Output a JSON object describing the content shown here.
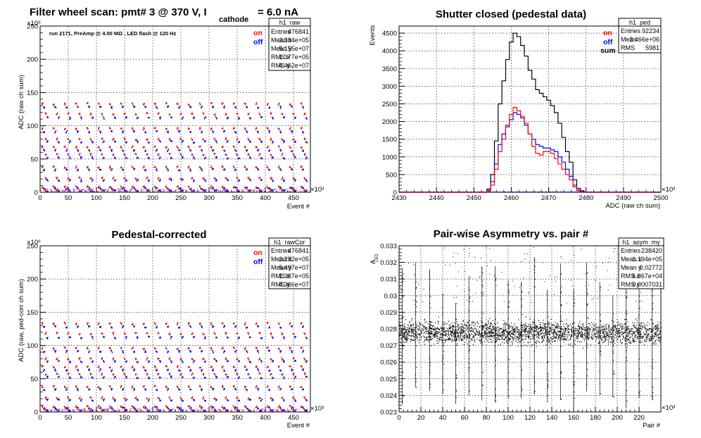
{
  "panels": [
    {
      "id": "raw",
      "title": "Filter wheel scan: pmt#   3 @   370 V, I",
      "title_sub": "cathode",
      "title_tail": "= 6.0 nA",
      "annotation": "run 2171, PreAmp @ 4.00 MΩ , LED flash @  120 Hz",
      "xlabel": "Event #",
      "ylabel": "ADC (raw ch sum)",
      "xexp": "×10³",
      "yexp": "×10⁶",
      "legend": [
        {
          "label": "on",
          "color": "#ff0000"
        },
        {
          "label": "off",
          "color": "#0000ff"
        }
      ],
      "stats": {
        "name": "h1_raw",
        "rows": [
          [
            "Entries",
            "476841"
          ],
          [
            "Mean x",
            "2.384e+05"
          ],
          [
            "Mean y",
            "5.155e+07"
          ],
          [
            "RMS x",
            "1.377e+05"
          ],
          [
            "RMS y",
            "4.462e+07"
          ]
        ]
      }
    },
    {
      "id": "ped",
      "title": "Shutter closed (pedestal data)",
      "xlabel": "ADC (raw ch sum)",
      "ylabel": "Events",
      "xexp": "×10³",
      "legend": [
        {
          "label": "on",
          "color": "#ff0000"
        },
        {
          "label": "off",
          "color": "#0000ff"
        },
        {
          "label": "sum",
          "color": "#000000"
        }
      ],
      "stats": {
        "name": "h1_ped",
        "rows": [
          [
            "Entries",
            "92234"
          ],
          [
            "Mean",
            "2.466e+06"
          ],
          [
            "RMS",
            "5981"
          ]
        ]
      }
    },
    {
      "id": "rawCor",
      "title": "Pedestal-corrected",
      "xlabel": "Event #",
      "ylabel": "ADC (raw, ped-corr ch sum)",
      "xexp": "×10³",
      "yexp": "×10⁶",
      "legend": [
        {
          "label": "on",
          "color": "#ff0000"
        },
        {
          "label": "off",
          "color": "#0000ff"
        }
      ],
      "stats": {
        "name": "h1_rawCor",
        "rows": [
          [
            "Entries",
            "476841"
          ],
          [
            "Mean x",
            "2.282e+05"
          ],
          [
            "Mean y",
            "5.497e+07"
          ],
          [
            "RMS x",
            "1.387e+05"
          ],
          [
            "RMS y",
            "4.366e+07"
          ]
        ]
      }
    },
    {
      "id": "asym",
      "title": "Pair-wise Asymmetry vs. pair #",
      "xlabel": "Pair #",
      "ylabel": "A",
      "ylabel_sub": "LED",
      "xexp": "×10³",
      "stats": {
        "name": "h1_asym_my",
        "rows": [
          [
            "Entries",
            "238420"
          ],
          [
            "Mean x",
            "1.194e+05"
          ],
          [
            "Mean y",
            "0.02772"
          ],
          [
            "RMS x",
            "6.867e+04"
          ],
          [
            "RMS y",
            "0.0007031"
          ]
        ]
      }
    }
  ],
  "chart_data": [
    {
      "type": "scatter",
      "title": "Filter wheel scan: pmt#   3 @   370 V, I cathode = 6.0 nA",
      "xlabel": "Event # (×10³)",
      "ylabel": "ADC (raw ch sum) (×10⁶)",
      "xlim": [
        0,
        480
      ],
      "ylim": [
        0,
        250
      ],
      "xticks": [
        0,
        50,
        100,
        150,
        200,
        250,
        300,
        350,
        400,
        450
      ],
      "yticks": [
        0,
        50,
        100,
        150,
        200,
        250
      ],
      "grid": true,
      "series": [
        {
          "name": "on",
          "color": "#ff0000",
          "levels": [
            133,
            118,
            96,
            80,
            68,
            57,
            38,
            21,
            8,
            3
          ]
        },
        {
          "name": "off",
          "color": "#0000ff",
          "levels": [
            128,
            112,
            91,
            76,
            63,
            52,
            34,
            18,
            6,
            2
          ]
        }
      ],
      "level_period_x": 20
    },
    {
      "type": "line",
      "title": "Shutter closed (pedestal data)",
      "xlabel": "ADC (raw ch sum) (×10³)",
      "ylabel": "Events",
      "xlim": [
        2430,
        2500
      ],
      "ylim": [
        0,
        4700
      ],
      "xticks": [
        2430,
        2440,
        2450,
        2460,
        2470,
        2480,
        2490,
        2500
      ],
      "yticks": [
        0,
        500,
        1000,
        1500,
        2000,
        2500,
        3000,
        3500,
        4000,
        4500
      ],
      "grid": true,
      "x": [
        2453,
        2454,
        2455,
        2456,
        2457,
        2458,
        2459,
        2460,
        2461,
        2462,
        2463,
        2464,
        2465,
        2466,
        2467,
        2468,
        2469,
        2470,
        2471,
        2472,
        2473,
        2474,
        2475,
        2476,
        2477,
        2478,
        2479,
        2480,
        2481
      ],
      "series": [
        {
          "name": "on",
          "color": "#ff0000",
          "values": [
            0,
            40,
            200,
            650,
            1150,
            1500,
            1900,
            2200,
            2400,
            2300,
            2150,
            1950,
            1650,
            1300,
            1100,
            1050,
            1150,
            1150,
            1100,
            950,
            800,
            650,
            500,
            350,
            150,
            50,
            20,
            0,
            0
          ]
        },
        {
          "name": "off",
          "color": "#0000ff",
          "values": [
            0,
            50,
            300,
            800,
            1350,
            1650,
            1850,
            2050,
            2250,
            2200,
            2100,
            1900,
            1650,
            1500,
            1350,
            1300,
            1250,
            1250,
            1200,
            1150,
            1000,
            850,
            650,
            450,
            200,
            60,
            20,
            0,
            0
          ]
        },
        {
          "name": "sum",
          "color": "#000000",
          "values": [
            0,
            90,
            500,
            1450,
            2500,
            3150,
            3750,
            4250,
            4500,
            4400,
            4150,
            3850,
            3450,
            3200,
            2900,
            2800,
            2700,
            2600,
            2450,
            2250,
            1950,
            1550,
            1150,
            850,
            350,
            110,
            40,
            0,
            0
          ]
        }
      ]
    },
    {
      "type": "scatter",
      "title": "Pedestal-corrected",
      "xlabel": "Event # (×10³)",
      "ylabel": "ADC (raw, ped-corr ch sum) (×10⁶)",
      "xlim": [
        0,
        480
      ],
      "ylim": [
        0,
        250
      ],
      "xticks": [
        0,
        50,
        100,
        150,
        200,
        250,
        300,
        350,
        400,
        450
      ],
      "yticks": [
        0,
        50,
        100,
        150,
        200,
        250
      ],
      "grid": true,
      "series": [
        {
          "name": "on",
          "color": "#ff0000",
          "levels": [
            133,
            118,
            96,
            80,
            68,
            57,
            38,
            21,
            8,
            3
          ]
        },
        {
          "name": "off",
          "color": "#0000ff",
          "levels": [
            128,
            112,
            91,
            76,
            63,
            52,
            34,
            18,
            6,
            2
          ]
        }
      ],
      "level_period_x": 20
    },
    {
      "type": "scatter",
      "title": "Pair-wise Asymmetry vs. pair #",
      "xlabel": "Pair # (×10³)",
      "ylabel": "A LED",
      "xlim": [
        0,
        240
      ],
      "ylim": [
        0.023,
        0.033
      ],
      "xticks": [
        0,
        20,
        40,
        60,
        80,
        100,
        120,
        140,
        160,
        180,
        200,
        220
      ],
      "yticks": [
        0.023,
        0.024,
        0.025,
        0.026,
        0.027,
        0.028,
        0.029,
        0.03,
        0.031,
        0.032,
        0.033
      ],
      "grid": true,
      "band_center": 0.0278,
      "band_halfwidth": 0.0007,
      "spike_x": [
        3,
        15,
        28,
        40,
        52,
        64,
        76,
        88,
        100,
        112,
        124,
        136,
        148,
        160,
        172,
        184,
        196,
        208,
        220,
        232
      ]
    }
  ]
}
